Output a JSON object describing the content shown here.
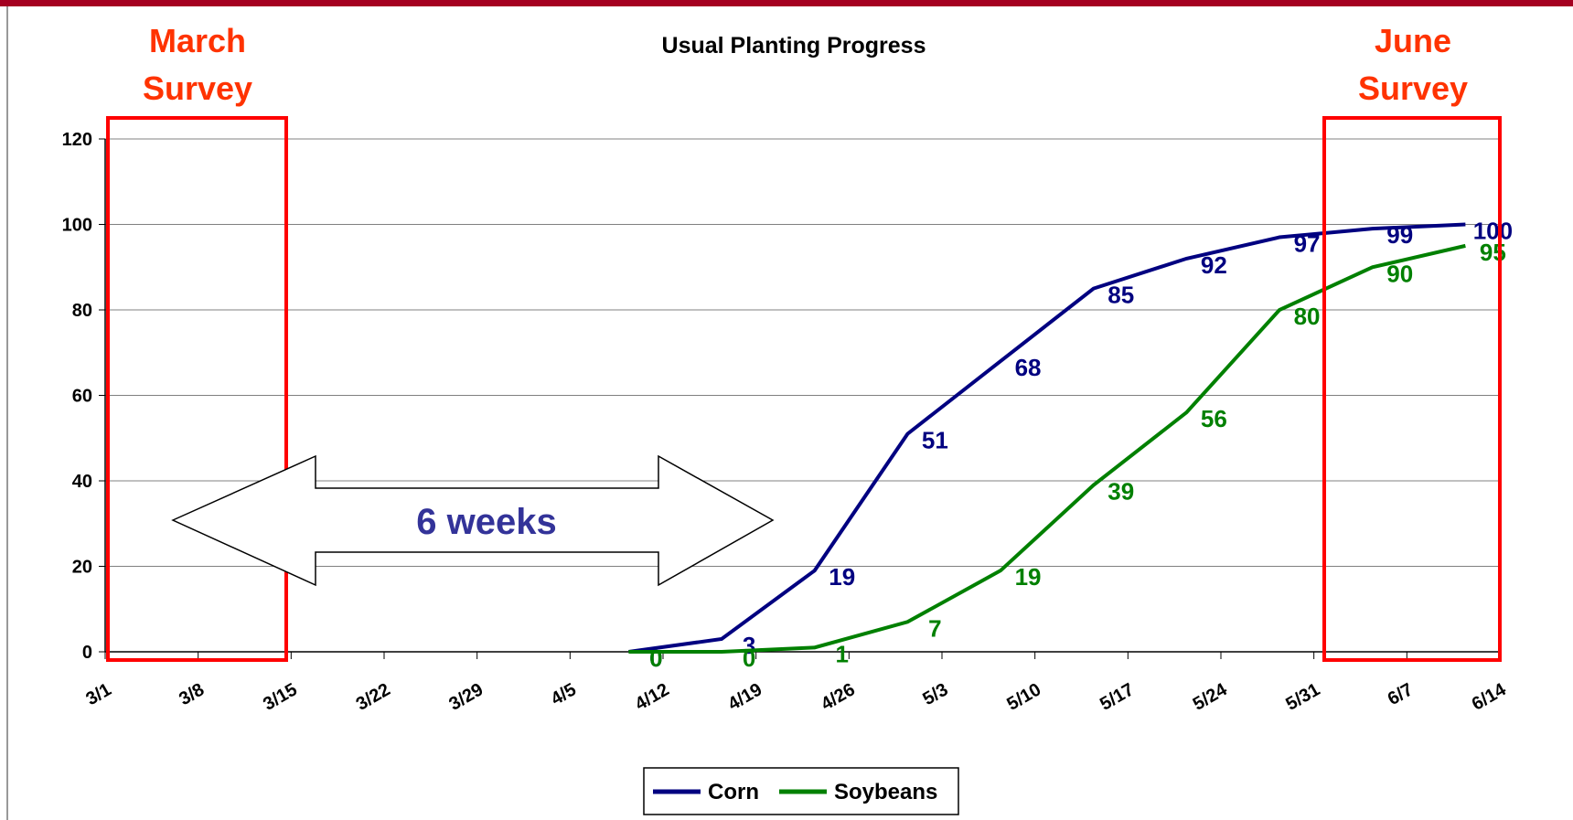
{
  "chart_data": {
    "type": "line",
    "title": "Usual Planting Progress",
    "categories": [
      "3/1",
      "3/8",
      "3/15",
      "3/22",
      "3/29",
      "4/5",
      "4/12",
      "4/19",
      "4/26",
      "5/3",
      "5/10",
      "5/17",
      "5/24",
      "5/31",
      "6/7",
      "6/14"
    ],
    "series": [
      {
        "name": "Corn",
        "color": "#000080",
        "values": [
          null,
          null,
          null,
          null,
          null,
          null,
          0,
          3,
          19,
          51,
          68,
          85,
          92,
          97,
          99,
          100
        ]
      },
      {
        "name": "Soybeans",
        "color": "#008000",
        "values": [
          null,
          null,
          null,
          null,
          null,
          null,
          0,
          0,
          1,
          7,
          19,
          39,
          56,
          80,
          90,
          95
        ]
      }
    ],
    "ylim": [
      0,
      120
    ],
    "yticks": [
      0,
      20,
      40,
      60,
      80,
      100,
      120
    ],
    "grid": true,
    "legend": "bottom",
    "annotations": [
      "March Survey",
      "June Survey",
      "6 weeks"
    ]
  }
}
